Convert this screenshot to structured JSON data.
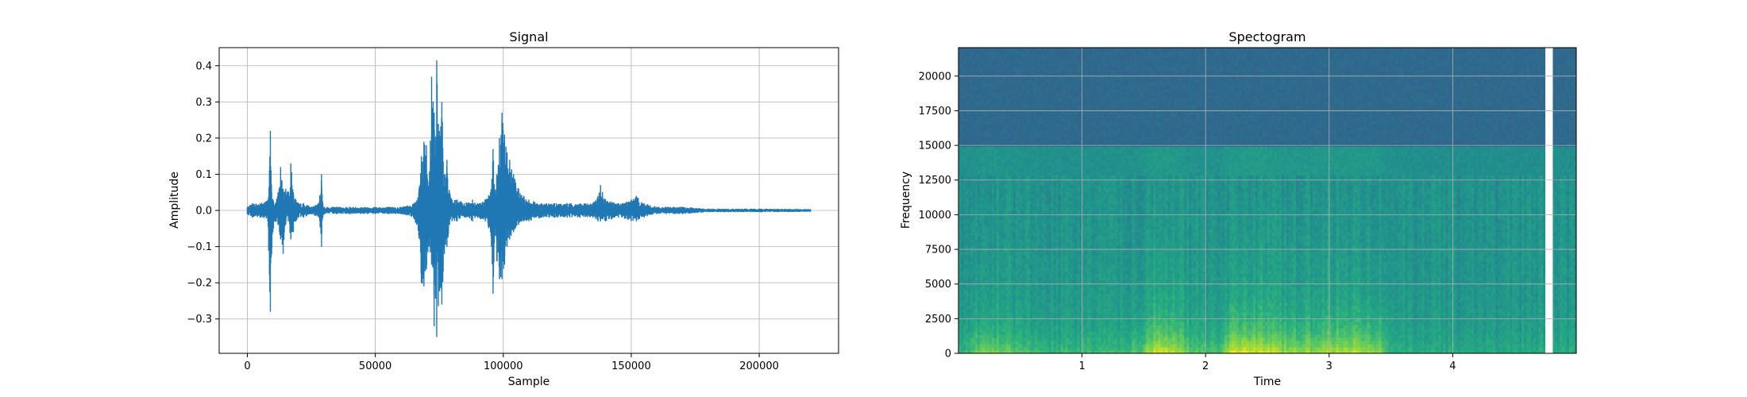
{
  "chart_data": [
    {
      "type": "line",
      "title": "Signal",
      "xlabel": "Sample",
      "ylabel": "Amplitude",
      "xlim": [
        -11000,
        231000
      ],
      "ylim": [
        -0.395,
        0.45
      ],
      "grid": true,
      "color": "#1f77b4",
      "x_ticks": [
        0,
        50000,
        100000,
        150000,
        200000
      ],
      "x_tick_labels": [
        "0",
        "50000",
        "100000",
        "150000",
        "200000"
      ],
      "y_ticks": [
        -0.3,
        -0.2,
        -0.1,
        0.0,
        0.1,
        0.2,
        0.3,
        0.4
      ],
      "y_tick_labels": [
        "−0.3",
        "−0.2",
        "−0.1",
        "0.0",
        "0.1",
        "0.2",
        "0.3",
        "0.4"
      ],
      "series": [
        {
          "envelope": {
            "x": [
              0,
              2000,
              5000,
              8000,
              9000,
              9500,
              10000,
              11000,
              12000,
              13000,
              14000,
              15000,
              16000,
              17000,
              18000,
              19000,
              20000,
              22000,
              25000,
              28000,
              29000,
              29500,
              30000,
              35000,
              40000,
              50000,
              55000,
              60000,
              65000,
              67000,
              68000,
              69000,
              70000,
              71000,
              72000,
              73000,
              74000,
              75000,
              76000,
              77000,
              78000,
              79000,
              80000,
              82000,
              85000,
              88000,
              90000,
              93000,
              95000,
              96000,
              96800,
              97500,
              98500,
              99500,
              100500,
              101500,
              102500,
              104000,
              106000,
              108000,
              110000,
              115000,
              120000,
              125000,
              130000,
              135000,
              137000,
              138000,
              140000,
              145000,
              150000,
              152000,
              155000,
              160000,
              170000,
              180000,
              200000,
              220000
            ],
            "max": [
              0.01,
              0.02,
              0.02,
              0.03,
              0.22,
              0.05,
              0.03,
              0.02,
              0.05,
              0.12,
              0.06,
              0.06,
              0.05,
              0.13,
              0.05,
              0.03,
              0.02,
              0.02,
              0.01,
              0.02,
              0.1,
              0.02,
              0.01,
              0.01,
              0.01,
              0.01,
              0.01,
              0.01,
              0.02,
              0.05,
              0.15,
              0.19,
              0.18,
              0.08,
              0.37,
              0.27,
              0.415,
              0.22,
              0.3,
              0.1,
              0.14,
              0.05,
              0.03,
              0.03,
              0.02,
              0.03,
              0.02,
              0.03,
              0.05,
              0.17,
              0.05,
              0.1,
              0.2,
              0.27,
              0.21,
              0.16,
              0.14,
              0.1,
              0.06,
              0.04,
              0.03,
              0.02,
              0.02,
              0.02,
              0.02,
              0.02,
              0.04,
              0.07,
              0.03,
              0.02,
              0.03,
              0.04,
              0.02,
              0.01,
              0.01,
              0.005,
              0.005,
              0.004
            ],
            "min": [
              -0.01,
              -0.02,
              -0.02,
              -0.03,
              -0.28,
              -0.12,
              -0.06,
              -0.03,
              -0.04,
              -0.08,
              -0.12,
              -0.04,
              -0.03,
              -0.08,
              -0.06,
              -0.03,
              -0.02,
              -0.02,
              -0.01,
              -0.02,
              -0.1,
              -0.02,
              -0.01,
              -0.01,
              -0.01,
              -0.01,
              -0.01,
              -0.01,
              -0.02,
              -0.07,
              -0.2,
              -0.21,
              -0.16,
              -0.1,
              -0.15,
              -0.32,
              -0.35,
              -0.22,
              -0.26,
              -0.12,
              -0.1,
              -0.04,
              -0.03,
              -0.03,
              -0.02,
              -0.03,
              -0.02,
              -0.03,
              -0.06,
              -0.23,
              -0.05,
              -0.14,
              -0.19,
              -0.19,
              -0.15,
              -0.1,
              -0.08,
              -0.06,
              -0.04,
              -0.03,
              -0.03,
              -0.02,
              -0.02,
              -0.02,
              -0.02,
              -0.02,
              -0.03,
              -0.03,
              -0.03,
              -0.02,
              -0.03,
              -0.03,
              -0.02,
              -0.01,
              -0.01,
              -0.005,
              -0.005,
              -0.004
            ]
          }
        }
      ]
    },
    {
      "type": "heatmap",
      "title": "Spectogram",
      "xlabel": "Time",
      "ylabel": "Frequency",
      "xlim": [
        0,
        5.0
      ],
      "ylim": [
        0,
        22050
      ],
      "grid": true,
      "colormap": "viridis",
      "x_ticks": [
        1,
        2,
        3,
        4
      ],
      "x_tick_labels": [
        "1",
        "2",
        "3",
        "4"
      ],
      "y_ticks": [
        0,
        2500,
        5000,
        7500,
        10000,
        12500,
        15000,
        17500,
        20000
      ],
      "y_tick_labels": [
        "0",
        "2500",
        "5000",
        "7500",
        "10000",
        "12500",
        "15000",
        "17500",
        "20000"
      ],
      "time_profile": {
        "t": [
          0.0,
          0.15,
          0.2,
          0.5,
          0.7,
          1.0,
          1.3,
          1.5,
          1.6,
          1.75,
          1.9,
          2.1,
          2.2,
          2.3,
          2.45,
          2.6,
          2.8,
          3.0,
          3.2,
          3.4,
          3.5,
          3.6,
          3.8,
          4.2,
          4.6,
          4.75
        ],
        "energy": [
          0.3,
          0.55,
          0.65,
          0.45,
          0.35,
          0.35,
          0.35,
          0.55,
          0.9,
          0.8,
          0.45,
          0.4,
          0.85,
          0.95,
          0.9,
          0.75,
          0.7,
          0.75,
          0.8,
          0.7,
          0.3,
          0.25,
          0.25,
          0.22,
          0.2,
          0.25
        ]
      },
      "gap_time": [
        4.75,
        4.81
      ]
    }
  ]
}
